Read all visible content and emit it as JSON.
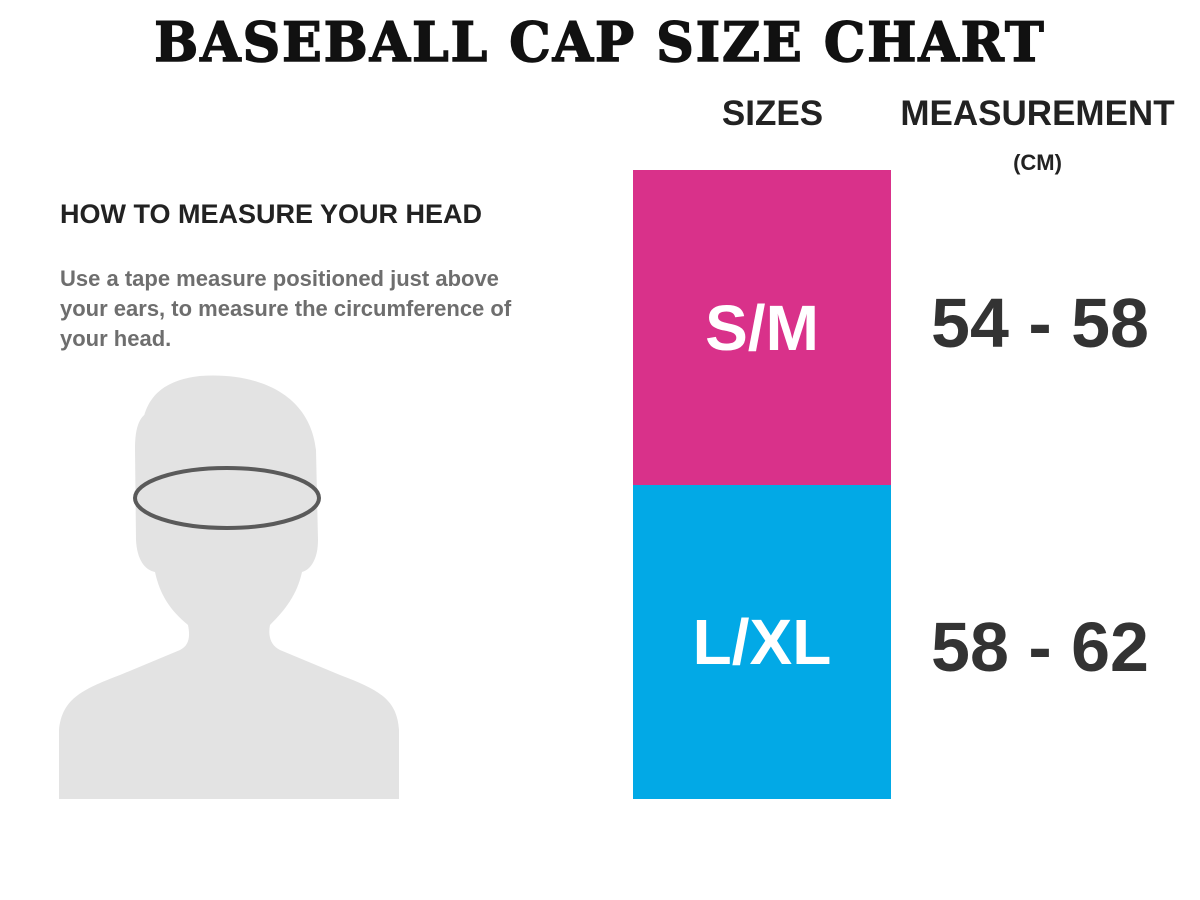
{
  "title": "BASEBALL CAP SIZE CHART",
  "headers": {
    "sizes": "SIZES",
    "measurement": "MEASUREMENT",
    "unit": "(CM)"
  },
  "instructions": {
    "heading": "HOW TO MEASURE YOUR HEAD",
    "text": "Use a tape measure positioned just above your ears, to measure the circumference of your head."
  },
  "rows": [
    {
      "size": "S/M",
      "measurement": "54 - 58",
      "color": "#d9318a"
    },
    {
      "size": "L/XL",
      "measurement": "58 - 62",
      "color": "#02a9e6"
    }
  ],
  "illustration": {
    "icon": "head-silhouette-icon",
    "silhouette_color": "#e3e3e3",
    "tape_color": "#5a5a5a"
  }
}
